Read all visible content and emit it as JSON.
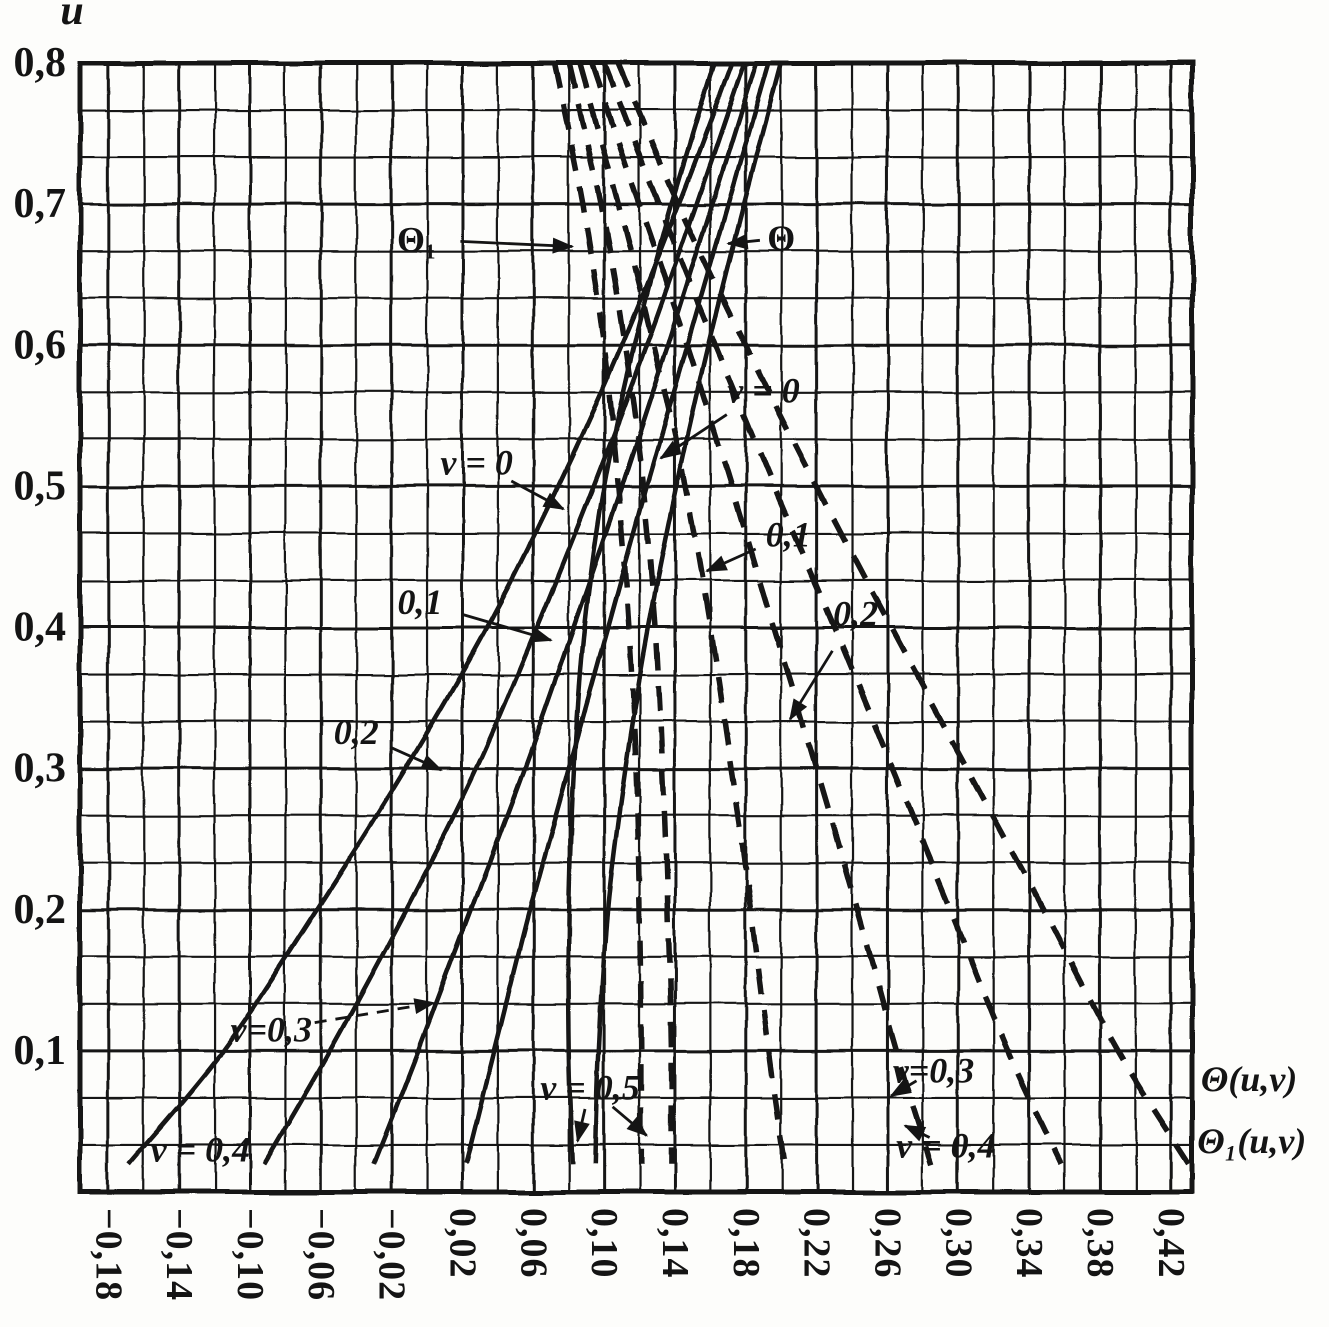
{
  "figure": {
    "background": "#fdfdfb",
    "ink_color": "#141414",
    "description_labels": {
      "solid_family": "Θ",
      "dashed_family": "Θ₁"
    }
  },
  "chart_data": {
    "type": "line",
    "title": "",
    "xlabel": "",
    "ylabel": "u",
    "grid": {
      "grid_on": true,
      "x_minor_step": 0.02,
      "x_labeled_step": 0.04,
      "y_divisions": 24,
      "y_major_every": 3
    },
    "x_axis": {
      "min": -0.196,
      "max": 0.432,
      "ticks": [
        {
          "value": -0.18,
          "label": "−0,18"
        },
        {
          "value": -0.14,
          "label": "−0,14"
        },
        {
          "value": -0.1,
          "label": "−0,10"
        },
        {
          "value": -0.06,
          "label": "−0,06"
        },
        {
          "value": -0.02,
          "label": "−0,02"
        },
        {
          "value": 0.02,
          "label": "0,02"
        },
        {
          "value": 0.06,
          "label": "0,06"
        },
        {
          "value": 0.1,
          "label": "0,10"
        },
        {
          "value": 0.14,
          "label": "0,14"
        },
        {
          "value": 0.18,
          "label": "0,18"
        },
        {
          "value": 0.22,
          "label": "0,22"
        },
        {
          "value": 0.26,
          "label": "0,26"
        },
        {
          "value": 0.3,
          "label": "0,30"
        },
        {
          "value": 0.34,
          "label": "0,34"
        },
        {
          "value": 0.38,
          "label": "0,38"
        },
        {
          "value": 0.42,
          "label": "0,42"
        }
      ]
    },
    "y_axis": {
      "min": 0,
      "max": 0.8,
      "label": "u",
      "ticks": [
        {
          "value": 0.8,
          "label": "0,8"
        },
        {
          "value": 0.7,
          "label": "0,7"
        },
        {
          "value": 0.6,
          "label": "0,6"
        },
        {
          "value": 0.5,
          "label": "0,5"
        },
        {
          "value": 0.4,
          "label": "0,4"
        },
        {
          "value": 0.3,
          "label": "0,3"
        },
        {
          "value": 0.2,
          "label": "0,2"
        },
        {
          "value": 0.1,
          "label": "0,1"
        }
      ]
    },
    "u_values": [
      0.8,
      0.7,
      0.6,
      0.5,
      0.4,
      0.3,
      0.2,
      0.1,
      0.02
    ],
    "series": [
      {
        "name": "Θ v=0",
        "family": "Θ",
        "v": 0.0,
        "style": "solid",
        "x": [
          0.2,
          0.179,
          0.159,
          0.141,
          0.125,
          0.112,
          0.102,
          0.097,
          0.095
        ]
      },
      {
        "name": "Θ v=0,1",
        "family": "Θ",
        "v": 0.1,
        "style": "solid",
        "x": [
          0.193,
          0.17,
          0.147,
          0.124,
          0.102,
          0.08,
          0.058,
          0.038,
          0.022
        ]
      },
      {
        "name": "Θ v=0,2",
        "family": "Θ",
        "v": 0.2,
        "style": "solid",
        "x": [
          0.186,
          0.161,
          0.136,
          0.11,
          0.083,
          0.055,
          0.025,
          -0.005,
          -0.03
        ]
      },
      {
        "name": "Θ v=0,3",
        "family": "Θ",
        "v": 0.3,
        "style": "solid",
        "x": [
          0.179,
          0.152,
          0.124,
          0.094,
          0.062,
          0.028,
          -0.012,
          -0.055,
          -0.092
        ]
      },
      {
        "name": "Θ v=0,4",
        "family": "Θ",
        "v": 0.4,
        "style": "solid",
        "x": [
          0.172,
          0.142,
          0.11,
          0.074,
          0.034,
          -0.012,
          -0.062,
          -0.115,
          -0.168
        ]
      },
      {
        "name": "Θ v=0,5",
        "family": "Θ",
        "v": 0.5,
        "style": "solid",
        "x": [
          0.162,
          0.138,
          0.117,
          0.1,
          0.089,
          0.083,
          0.08,
          0.08,
          0.082
        ]
      },
      {
        "name": "Θ₁ v=0",
        "family": "Θ₁",
        "v": 0.0,
        "style": "dashed",
        "x": [
          0.08,
          0.098,
          0.112,
          0.122,
          0.129,
          0.133,
          0.136,
          0.138,
          0.138
        ]
      },
      {
        "name": "Θ₁ v=0,1",
        "family": "Θ₁",
        "v": 0.1,
        "style": "dashed",
        "x": [
          0.086,
          0.108,
          0.128,
          0.146,
          0.16,
          0.172,
          0.183,
          0.193,
          0.202
        ]
      },
      {
        "name": "Θ₁ v=0,2",
        "family": "Θ₁",
        "v": 0.2,
        "style": "dashed",
        "x": [
          0.093,
          0.12,
          0.147,
          0.172,
          0.196,
          0.22,
          0.243,
          0.265,
          0.285
        ]
      },
      {
        "name": "Θ₁ v=0,3",
        "family": "Θ₁",
        "v": 0.3,
        "style": "dashed",
        "x": [
          0.1,
          0.131,
          0.163,
          0.196,
          0.23,
          0.263,
          0.296,
          0.328,
          0.358
        ]
      },
      {
        "name": "Θ₁ v=0,4",
        "family": "Θ₁",
        "v": 0.4,
        "style": "dashed",
        "x": [
          0.108,
          0.142,
          0.18,
          0.22,
          0.262,
          0.305,
          0.348,
          0.39,
          0.43
        ]
      },
      {
        "name": "Θ₁ v=0,5",
        "family": "Θ₁",
        "v": 0.5,
        "style": "dashed",
        "x": [
          0.072,
          0.088,
          0.1,
          0.108,
          0.114,
          0.118,
          0.12,
          0.121,
          0.121
        ]
      }
    ],
    "legend": [
      {
        "text": "Θ(u,v)",
        "style": "solid",
        "position": "right-edge"
      },
      {
        "text": "Θ₁(u,v)",
        "style": "dashed",
        "position": "right-edge"
      }
    ],
    "annotations": [
      {
        "text": "Θ₁",
        "x": -0.006,
        "u": 0.675,
        "italic": false,
        "tips": [
          {
            "x": 0.082,
            "u": 0.67
          }
        ]
      },
      {
        "text": "Θ",
        "x": 0.2,
        "u": 0.676,
        "italic": false,
        "tips": [
          {
            "x": 0.17,
            "u": 0.672
          }
        ]
      },
      {
        "text": "v = 0",
        "x": 0.028,
        "u": 0.517,
        "italic": true,
        "tips": [
          {
            "x": 0.077,
            "u": 0.484
          }
        ]
      },
      {
        "text": "0,1",
        "x": -0.004,
        "u": 0.418,
        "italic": true,
        "tips": [
          {
            "x": 0.07,
            "u": 0.391
          }
        ]
      },
      {
        "text": "0,2",
        "x": -0.04,
        "u": 0.326,
        "italic": true,
        "tips": [
          {
            "x": 0.008,
            "u": 0.299
          }
        ]
      },
      {
        "text": "v=0,3",
        "x": -0.088,
        "u": 0.115,
        "italic": true,
        "leader": "dashed",
        "tips": [
          {
            "x": 0.004,
            "u": 0.134
          }
        ]
      },
      {
        "text": "v = 0,4",
        "x": -0.128,
        "u": 0.03,
        "italic": true,
        "tips": []
      },
      {
        "text": "v = 0,5",
        "x": 0.092,
        "u": 0.074,
        "italic": true,
        "tips": [
          {
            "x": 0.085,
            "u": 0.036
          },
          {
            "x": 0.124,
            "u": 0.04
          }
        ]
      },
      {
        "text": "v = 0",
        "x": 0.19,
        "u": 0.568,
        "italic": true,
        "tips": [
          {
            "x": 0.132,
            "u": 0.52
          }
        ]
      },
      {
        "text": "0,1",
        "x": 0.204,
        "u": 0.466,
        "italic": true,
        "tips": [
          {
            "x": 0.158,
            "u": 0.44
          }
        ]
      },
      {
        "text": "0,2",
        "x": 0.242,
        "u": 0.41,
        "italic": true,
        "tips": [
          {
            "x": 0.205,
            "u": 0.335
          }
        ]
      },
      {
        "text": "v=0,3",
        "x": 0.286,
        "u": 0.086,
        "italic": true,
        "tips": [
          {
            "x": 0.262,
            "u": 0.068
          }
        ]
      },
      {
        "text": "v = 0,4",
        "x": 0.293,
        "u": 0.033,
        "italic": true,
        "tips": [
          {
            "x": 0.27,
            "u": 0.047
          }
        ]
      },
      {
        "text": "Θ(u,v)",
        "x": 0.437,
        "u": 0.08,
        "italic": true,
        "anchor": "start",
        "tips": []
      },
      {
        "text": "Θ₁(u,v)",
        "x": 0.435,
        "u": 0.036,
        "italic": true,
        "anchor": "start",
        "tips": []
      }
    ]
  }
}
